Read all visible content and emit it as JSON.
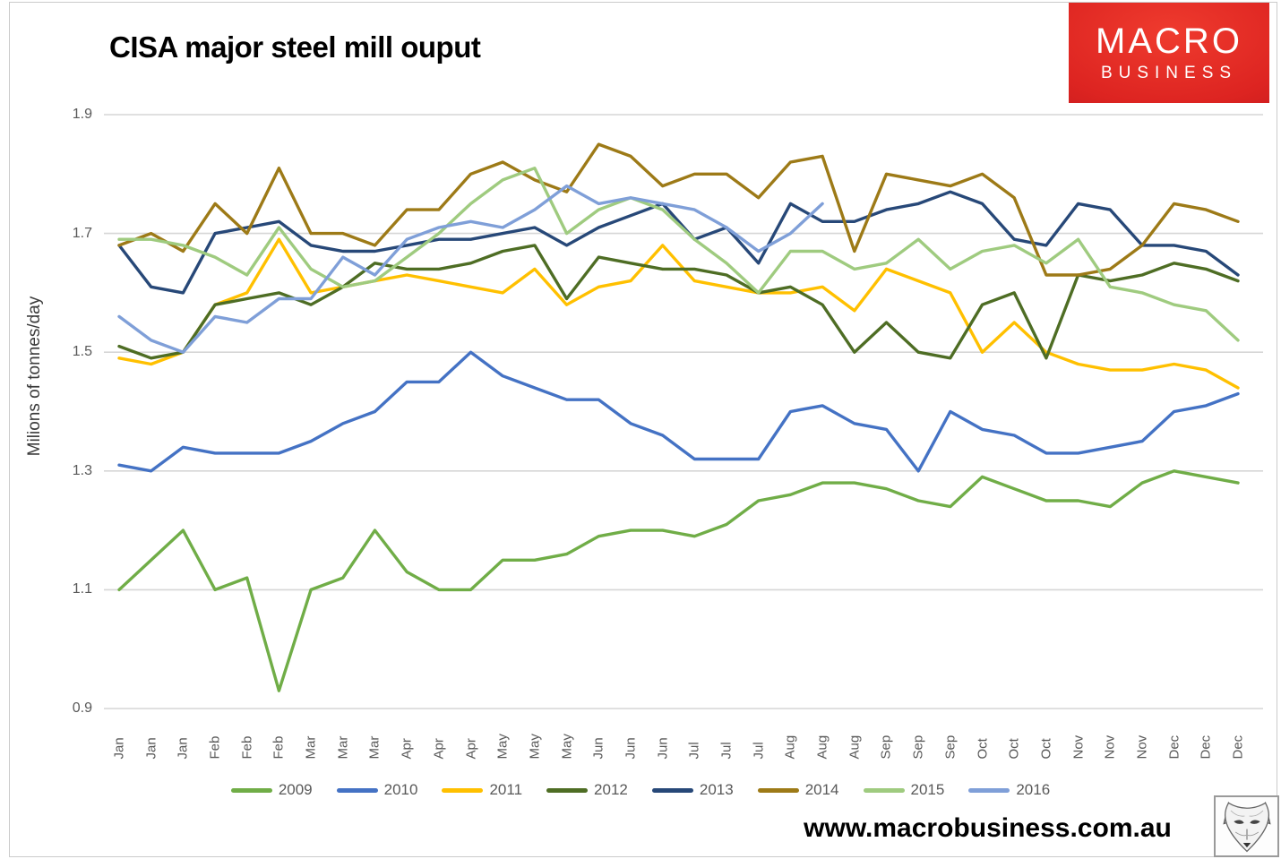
{
  "title": "CISA major steel mill ouput",
  "logo": {
    "line1": "MACRO",
    "line2": "BUSINESS",
    "icon": "macrobusiness-brand-logo"
  },
  "footer": {
    "website": "www.macrobusiness.com.au",
    "icon": "fox-head-logo"
  },
  "colors": {
    "background": "#ffffff",
    "gridline": "#d6d6d6",
    "axis_text": "#595959",
    "brand_red": "#dd2421"
  },
  "chart_data": {
    "type": "line",
    "title": "CISA major steel mill ouput",
    "xlabel": "",
    "ylabel": "Milions of tonnes/day",
    "ylim": [
      0.9,
      1.9
    ],
    "y_ticks": [
      "1.9",
      "1.7",
      "1.5",
      "1.3",
      "1.1",
      "0.9"
    ],
    "grid": "horizontal",
    "legend_position": "bottom",
    "categories": [
      "Jan",
      "Jan",
      "Jan",
      "Feb",
      "Feb",
      "Feb",
      "Mar",
      "Mar",
      "Mar",
      "Apr",
      "Apr",
      "Apr",
      "May",
      "May",
      "May",
      "Jun",
      "Jun",
      "Jun",
      "Jul",
      "Jul",
      "Jul",
      "Aug",
      "Aug",
      "Aug",
      "Sep",
      "Sep",
      "Sep",
      "Oct",
      "Oct",
      "Oct",
      "Nov",
      "Nov",
      "Nov",
      "Dec",
      "Dec",
      "Dec"
    ],
    "series": [
      {
        "name": "2009",
        "color": "#70ad47",
        "values": [
          1.1,
          1.15,
          1.2,
          1.1,
          1.12,
          0.93,
          1.1,
          1.12,
          1.2,
          1.13,
          1.1,
          1.1,
          1.15,
          1.15,
          1.16,
          1.19,
          1.2,
          1.2,
          1.19,
          1.21,
          1.25,
          1.26,
          1.28,
          1.28,
          1.27,
          1.25,
          1.24,
          1.29,
          1.27,
          1.25,
          1.25,
          1.24,
          1.28,
          1.3,
          1.29,
          1.28
        ]
      },
      {
        "name": "2010",
        "color": "#4472c4",
        "values": [
          1.31,
          1.3,
          1.34,
          1.33,
          1.33,
          1.33,
          1.35,
          1.38,
          1.4,
          1.45,
          1.45,
          1.5,
          1.46,
          1.44,
          1.42,
          1.42,
          1.38,
          1.36,
          1.32,
          1.32,
          1.32,
          1.4,
          1.41,
          1.38,
          1.37,
          1.3,
          1.4,
          1.37,
          1.36,
          1.33,
          1.33,
          1.34,
          1.35,
          1.4,
          1.41,
          1.43
        ]
      },
      {
        "name": "2011",
        "color": "#ffc000",
        "values": [
          1.49,
          1.48,
          1.5,
          1.58,
          1.6,
          1.69,
          1.6,
          1.61,
          1.62,
          1.63,
          1.62,
          1.61,
          1.6,
          1.64,
          1.58,
          1.61,
          1.62,
          1.68,
          1.62,
          1.61,
          1.6,
          1.6,
          1.61,
          1.57,
          1.64,
          1.62,
          1.6,
          1.5,
          1.55,
          1.5,
          1.48,
          1.47,
          1.47,
          1.48,
          1.47,
          1.44
        ]
      },
      {
        "name": "2012",
        "color": "#4e6d24",
        "values": [
          1.51,
          1.49,
          1.5,
          1.58,
          1.59,
          1.6,
          1.58,
          1.61,
          1.65,
          1.64,
          1.64,
          1.65,
          1.67,
          1.68,
          1.59,
          1.66,
          1.65,
          1.64,
          1.64,
          1.63,
          1.6,
          1.61,
          1.58,
          1.5,
          1.55,
          1.5,
          1.49,
          1.58,
          1.6,
          1.49,
          1.63,
          1.62,
          1.63,
          1.65,
          1.64,
          1.62
        ]
      },
      {
        "name": "2013",
        "color": "#274878",
        "values": [
          1.68,
          1.61,
          1.6,
          1.7,
          1.71,
          1.72,
          1.68,
          1.67,
          1.67,
          1.68,
          1.69,
          1.69,
          1.7,
          1.71,
          1.68,
          1.71,
          1.73,
          1.75,
          1.69,
          1.71,
          1.65,
          1.75,
          1.72,
          1.72,
          1.74,
          1.75,
          1.77,
          1.75,
          1.69,
          1.68,
          1.75,
          1.74,
          1.68,
          1.68,
          1.67,
          1.63
        ]
      },
      {
        "name": "2014",
        "color": "#9d7a17",
        "values": [
          1.68,
          1.7,
          1.67,
          1.75,
          1.7,
          1.81,
          1.7,
          1.7,
          1.68,
          1.74,
          1.74,
          1.8,
          1.82,
          1.79,
          1.77,
          1.85,
          1.83,
          1.78,
          1.8,
          1.8,
          1.76,
          1.82,
          1.83,
          1.67,
          1.8,
          1.79,
          1.78,
          1.8,
          1.76,
          1.63,
          1.63,
          1.64,
          1.68,
          1.75,
          1.74,
          1.72
        ]
      },
      {
        "name": "2015",
        "color": "#9fcb7f",
        "values": [
          1.69,
          1.69,
          1.68,
          1.66,
          1.63,
          1.71,
          1.64,
          1.61,
          1.62,
          1.66,
          1.7,
          1.75,
          1.79,
          1.81,
          1.7,
          1.74,
          1.76,
          1.74,
          1.69,
          1.65,
          1.6,
          1.67,
          1.67,
          1.64,
          1.65,
          1.69,
          1.64,
          1.67,
          1.68,
          1.65,
          1.69,
          1.61,
          1.6,
          1.58,
          1.57,
          1.52
        ]
      },
      {
        "name": "2016",
        "color": "#7f9fd8",
        "values": [
          1.56,
          1.52,
          1.5,
          1.56,
          1.55,
          1.59,
          1.59,
          1.66,
          1.63,
          1.69,
          1.71,
          1.72,
          1.71,
          1.74,
          1.78,
          1.75,
          1.76,
          1.75,
          1.74,
          1.71,
          1.67,
          1.7,
          1.75
        ]
      }
    ]
  }
}
